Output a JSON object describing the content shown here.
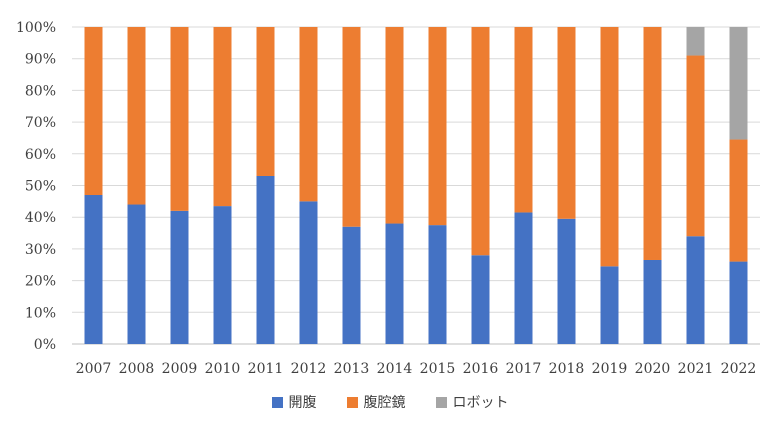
{
  "chart_data": {
    "type": "bar",
    "stacked": true,
    "percent": true,
    "categories": [
      "2007",
      "2008",
      "2009",
      "2010",
      "2011",
      "2012",
      "2013",
      "2014",
      "2015",
      "2016",
      "2017",
      "2018",
      "2019",
      "2020",
      "2021",
      "2022"
    ],
    "series": [
      {
        "name": "開腹",
        "color": "#4472c4",
        "values": [
          47,
          44,
          42,
          43.5,
          53,
          45,
          37,
          38,
          37.5,
          28,
          41.5,
          39.5,
          24.5,
          26.5,
          34,
          26
        ]
      },
      {
        "name": "腹腔鏡",
        "color": "#ed7d31",
        "values": [
          53,
          56,
          58,
          56.5,
          47,
          55,
          63,
          62,
          62.5,
          72,
          58.5,
          60.5,
          75.5,
          73.5,
          57,
          38.5
        ]
      },
      {
        "name": "ロボット",
        "color": "#a5a5a5",
        "values": [
          0,
          0,
          0,
          0,
          0,
          0,
          0,
          0,
          0,
          0,
          0,
          0,
          0,
          0,
          9,
          35.5
        ]
      }
    ],
    "yticks": [
      "0%",
      "10%",
      "20%",
      "30%",
      "40%",
      "50%",
      "60%",
      "70%",
      "80%",
      "90%",
      "100%"
    ],
    "ylim": [
      0,
      100
    ],
    "grid": true,
    "legend": "bottom"
  }
}
